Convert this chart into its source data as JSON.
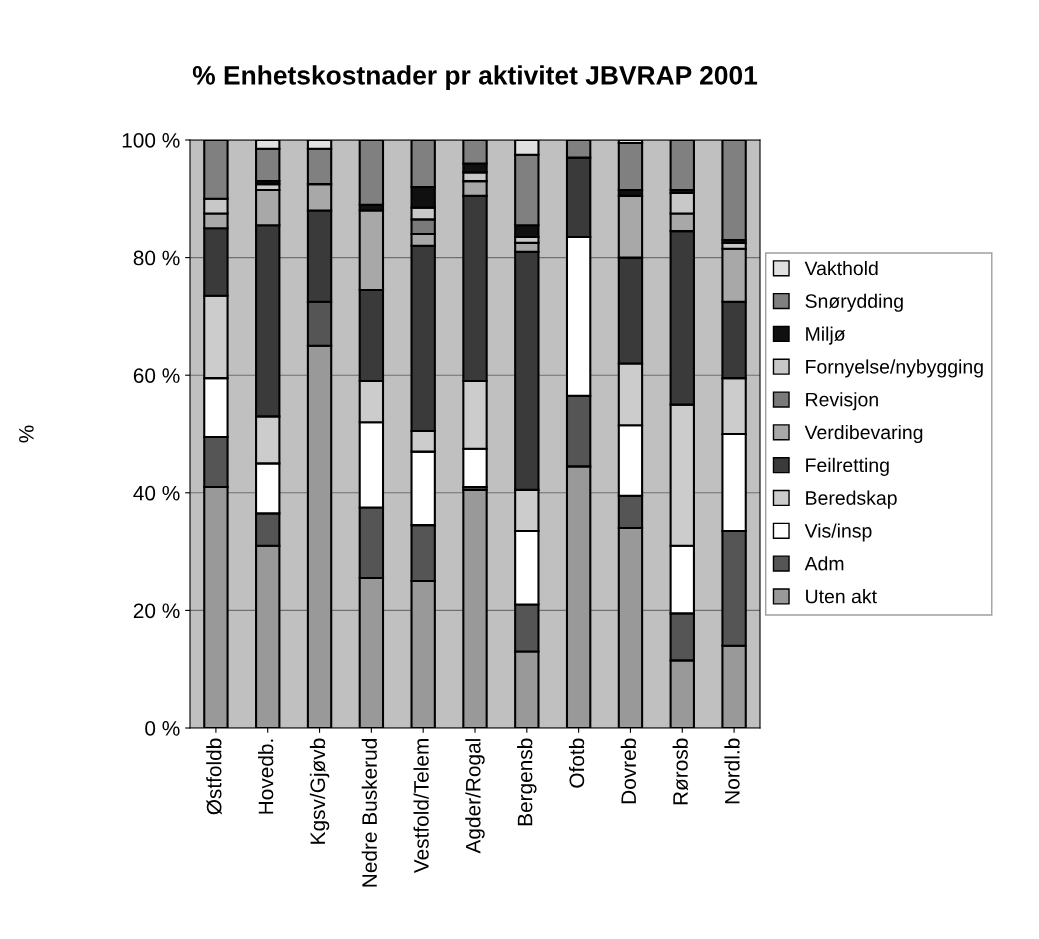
{
  "chart_data": {
    "type": "bar",
    "stacked": true,
    "title": "% Enhetskostnader pr aktivitet JBVRAP 2001",
    "ylabel": "%",
    "categories": [
      "Østfoldb",
      "Hovedb.",
      "Kgsv/Gjøvb",
      "Nedre Buskerud",
      "Vestfold/Telem",
      "Agder/Rogal",
      "Bergensb",
      "Ofotb",
      "Dovreb",
      "Rørosb",
      "Nordl.b"
    ],
    "ylim": [
      0,
      100
    ],
    "yticks": [
      {
        "value": 0,
        "label": "0 %"
      },
      {
        "value": 20,
        "label": "20 %"
      },
      {
        "value": 40,
        "label": "40 %"
      },
      {
        "value": 60,
        "label": "60 %"
      },
      {
        "value": 80,
        "label": "80 %"
      },
      {
        "value": 100,
        "label": "100 %"
      }
    ],
    "grid": "y",
    "legend": "right",
    "series": [
      {
        "name": "Uten akt",
        "color": "#999999",
        "values": [
          41,
          31,
          65,
          25.5,
          25,
          40.5,
          13,
          44.5,
          34,
          11.5,
          14
        ]
      },
      {
        "name": "Adm",
        "color": "#555555",
        "values": [
          8.5,
          5.5,
          7.5,
          12,
          9.5,
          0.5,
          8,
          12,
          5.5,
          8,
          19.5
        ]
      },
      {
        "name": "Vis/insp",
        "color": "#ffffff",
        "values": [
          10,
          8.5,
          null,
          14.5,
          12.5,
          6.5,
          12.5,
          27,
          12,
          11.5,
          16.5
        ]
      },
      {
        "name": "Beredskap",
        "color": "#cccccc",
        "values": [
          14,
          8,
          null,
          7,
          3.5,
          11.5,
          7,
          null,
          10.5,
          24,
          9.5
        ]
      },
      {
        "name": "Feilretting",
        "color": "#3a3a3a",
        "values": [
          11.5,
          32.5,
          15.5,
          15.5,
          31.5,
          31.5,
          40.5,
          13.5,
          18,
          29.5,
          13
        ]
      },
      {
        "name": "Verdibevaring",
        "color": "#a8a8a8",
        "values": [
          2.5,
          6,
          4.5,
          13.5,
          2,
          2.5,
          1.5,
          null,
          10.5,
          3,
          9
        ]
      },
      {
        "name": "Revisjon",
        "color": "#7a7a7a",
        "values": [
          null,
          null,
          null,
          null,
          2.5,
          null,
          null,
          null,
          null,
          null,
          null
        ]
      },
      {
        "name": "Fornyelse/nybygging",
        "color": "#c8c8c8",
        "values": [
          2.5,
          1,
          null,
          null,
          2,
          1.5,
          1,
          null,
          null,
          3.5,
          1
        ]
      },
      {
        "name": "Miljø",
        "color": "#101010",
        "values": [
          null,
          0.5,
          null,
          1,
          3.5,
          1.5,
          2,
          null,
          1,
          0.5,
          0.5
        ]
      },
      {
        "name": "Snørydding",
        "color": "#808080",
        "values": [
          10,
          5.5,
          6,
          11,
          8,
          4,
          12,
          3,
          8,
          8.5,
          17
        ]
      },
      {
        "name": "Vakthold",
        "color": "#e0e0e0",
        "values": [
          null,
          1.5,
          1.5,
          null,
          null,
          null,
          2.5,
          null,
          0.5,
          null,
          null
        ]
      }
    ]
  }
}
